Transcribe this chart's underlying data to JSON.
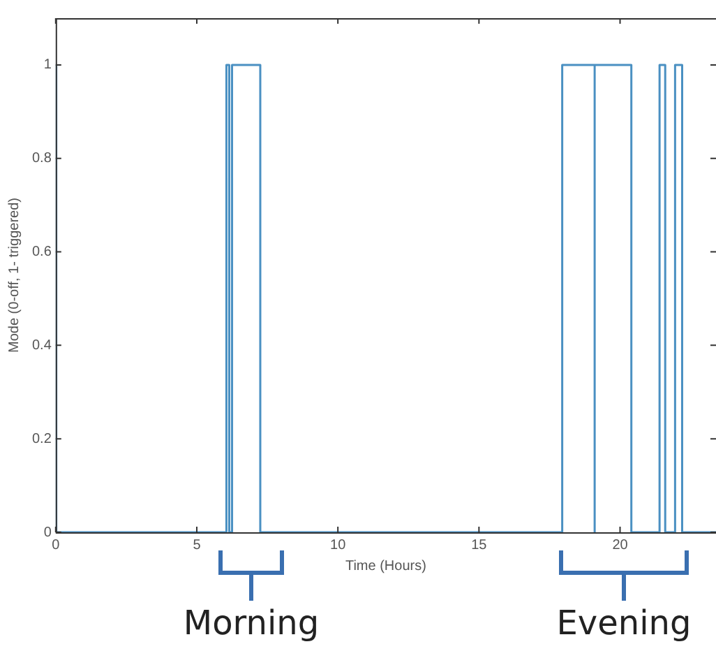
{
  "chart_data": {
    "type": "step",
    "xlabel": "Time (Hours)",
    "ylabel": "Mode (0-off, 1- triggered)",
    "x": [
      0,
      0.02,
      6.05,
      6.15,
      6.25,
      7.25,
      17.95,
      19.1,
      19.1,
      20.4,
      21.4,
      21.6,
      21.95,
      22.2,
      23.4
    ],
    "series": [
      {
        "color": "#4a90c2",
        "values": [
          1,
          0,
          1,
          0,
          1,
          0,
          1,
          0,
          1,
          0,
          1,
          0,
          1,
          0,
          0
        ]
      }
    ],
    "xlim": [
      0,
      23.4
    ],
    "xticks": [
      0,
      5,
      10,
      15,
      20
    ],
    "ylim": [
      0,
      1.1
    ],
    "yticks": [
      0,
      0.2,
      0.4,
      0.6,
      0.8,
      1
    ],
    "grid": false,
    "legend": false,
    "annotations": [
      "Morning",
      "Evening"
    ]
  }
}
